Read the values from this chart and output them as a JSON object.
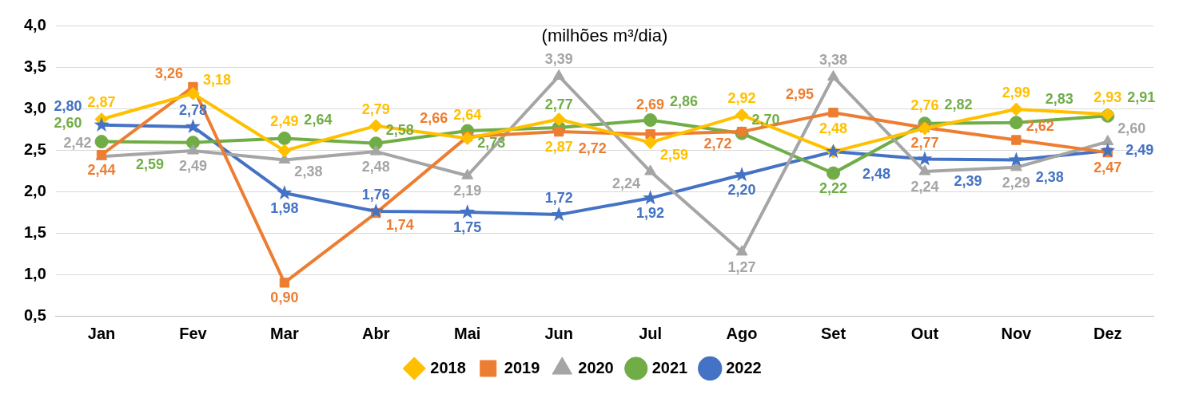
{
  "chart_data": {
    "type": "line",
    "title": "(milhões m³/dia)",
    "categories": [
      "Jan",
      "Fev",
      "Mar",
      "Abr",
      "Mai",
      "Jun",
      "Jul",
      "Ago",
      "Set",
      "Out",
      "Nov",
      "Dez"
    ],
    "ylim": [
      0.5,
      4.0
    ],
    "yticks": [
      {
        "value": 0.5,
        "label": "0,5"
      },
      {
        "value": 1.0,
        "label": "1,0"
      },
      {
        "value": 1.5,
        "label": "1,5"
      },
      {
        "value": 2.0,
        "label": "2,0"
      },
      {
        "value": 2.5,
        "label": "2,5"
      },
      {
        "value": 3.0,
        "label": "3,0"
      },
      {
        "value": 3.5,
        "label": "3,5"
      },
      {
        "value": 4.0,
        "label": "4,0"
      }
    ],
    "grid": "y",
    "legend": "bottom",
    "series": [
      {
        "name": "2018",
        "color": "#ffc000",
        "marker": "diamond",
        "values": [
          2.87,
          3.18,
          2.49,
          2.79,
          2.64,
          2.87,
          2.59,
          2.92,
          2.48,
          2.76,
          2.99,
          2.93
        ],
        "value_labels": [
          "2,87",
          "3,18",
          "2,49",
          "2,79",
          "2,64",
          "2,87",
          "2,59",
          "2,92",
          "2,48",
          "2,76",
          "2,99",
          "2,93"
        ]
      },
      {
        "name": "2019",
        "color": "#ed7d31",
        "marker": "square",
        "values": [
          2.44,
          3.26,
          0.9,
          1.74,
          2.66,
          2.72,
          2.69,
          2.72,
          2.95,
          2.77,
          2.62,
          2.47
        ],
        "value_labels": [
          "2,44",
          "3,26",
          "0,90",
          "1,74",
          "2,66",
          "2,72",
          "2,69",
          "2,72",
          "2,95",
          "2,77",
          "2,62",
          "2,47"
        ]
      },
      {
        "name": "2020",
        "color": "#a5a5a5",
        "marker": "triangle",
        "values": [
          2.42,
          2.49,
          2.38,
          2.48,
          2.19,
          3.39,
          2.24,
          1.27,
          3.38,
          2.24,
          2.29,
          2.6
        ],
        "value_labels": [
          "2,42",
          "2,49",
          "2,38",
          "2,48",
          "2,19",
          "3,39",
          "2,24",
          "1,27",
          "3,38",
          "2,24",
          "2,29",
          "2,60"
        ]
      },
      {
        "name": "2021",
        "color": "#70ad47",
        "marker": "circle",
        "values": [
          2.6,
          2.59,
          2.64,
          2.58,
          2.73,
          2.77,
          2.86,
          2.7,
          2.22,
          2.82,
          2.83,
          2.91
        ],
        "value_labels": [
          "2,60",
          "2,59",
          "2,64",
          "2,58",
          "2,73",
          "2,77",
          "2,86",
          "2,70",
          "2,22",
          "2,82",
          "2,83",
          "2,91"
        ]
      },
      {
        "name": "2022",
        "color": "#4472c4",
        "marker": "star",
        "values": [
          2.8,
          2.78,
          1.98,
          1.76,
          1.75,
          1.72,
          1.92,
          2.2,
          2.48,
          2.39,
          2.38,
          2.49
        ],
        "value_labels": [
          "2,80",
          "2,78",
          "1,98",
          "1,76",
          "1,75",
          "1,72",
          "1,92",
          "2,20",
          "2,48",
          "2,39",
          "2,38",
          "2,49"
        ]
      }
    ]
  }
}
